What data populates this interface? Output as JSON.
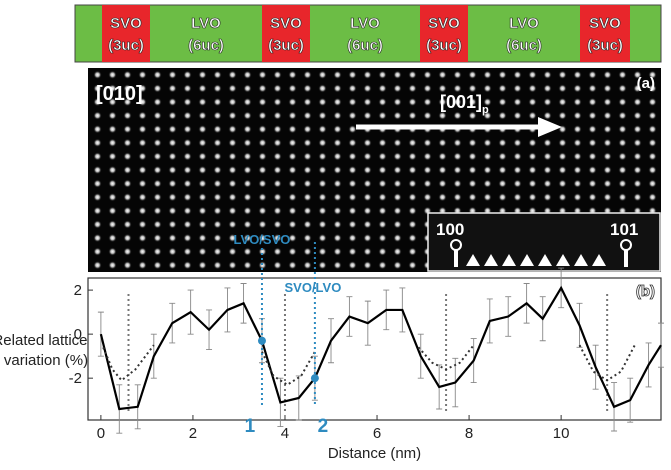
{
  "layers": [
    {
      "material": "SVO",
      "thickness": "(3uc)"
    },
    {
      "material": "LVO",
      "thickness": "(6uc)"
    },
    {
      "material": "SVO",
      "thickness": "(3uc)"
    },
    {
      "material": "LVO",
      "thickness": "(6uc)"
    },
    {
      "material": "SVO",
      "thickness": "(3uc)"
    },
    {
      "material": "LVO",
      "thickness": "(6uc)"
    },
    {
      "material": "SVO",
      "thickness": "(3uc)"
    }
  ],
  "image": {
    "zone_axis": "[010]",
    "direction": "[001]",
    "direction_sub": "p",
    "panel": "(a)",
    "inset_left": "100",
    "inset_right": "101"
  },
  "chart_data": {
    "type": "line",
    "panel": "(b)",
    "xlabel": "Distance (nm)",
    "ylabel": [
      "Related lattice",
      "variation (%)"
    ],
    "xlim": [
      -0.28,
      12.17
    ],
    "ylim": [
      -3.9,
      2.55
    ],
    "xticks": [
      0,
      2,
      4,
      6,
      8,
      10
    ],
    "yticks": [
      -2,
      0,
      2
    ],
    "series": [
      {
        "color": "#000000",
        "x": [
          0,
          0.4,
          0.8,
          1.15,
          1.55,
          1.95,
          2.35,
          2.75,
          3.1,
          3.5,
          3.9,
          4.3,
          4.65,
          5.0,
          5.4,
          5.8,
          6.2,
          6.55,
          6.95,
          7.35,
          7.7,
          8.1,
          8.45,
          8.85,
          9.25,
          9.6,
          10.0,
          10.4,
          10.75,
          11.15,
          11.5,
          11.9,
          12.17
        ],
        "values": [
          0,
          -3.4,
          -3.3,
          -1.0,
          0.5,
          1.0,
          0.2,
          1.1,
          1.4,
          -0.3,
          -3.1,
          -2.9,
          -2.0,
          -0.3,
          0.8,
          0.5,
          1.1,
          1.1,
          -1.0,
          -2.4,
          -2.2,
          -1.2,
          0.6,
          0.8,
          1.4,
          0.7,
          2.1,
          0.4,
          -1.5,
          -3.3,
          -3.0,
          -1.4,
          -0.5
        ],
        "errors": [
          1.0,
          1.1,
          1.0,
          1.0,
          0.9,
          1.0,
          0.9,
          1.0,
          0.9,
          1.0,
          1.1,
          1.0,
          1.0,
          1.0,
          0.9,
          1.0,
          0.9,
          1.0,
          1.0,
          1.0,
          1.1,
          1.0,
          1.0,
          0.9,
          0.9,
          1.0,
          0.9,
          1.0,
          1.0,
          1.1,
          1.0,
          1.0,
          1.0
        ]
      },
      {
        "color": "#333333",
        "style": "dotted",
        "x": [
          0.05,
          0.25,
          0.45,
          0.75,
          1.15
        ],
        "values": [
          -0.6,
          -1.6,
          -2.1,
          -1.6,
          -0.5
        ]
      },
      {
        "color": "#333333",
        "style": "dotted",
        "x": [
          3.5,
          3.75,
          4.05,
          4.35,
          4.65
        ],
        "values": [
          -0.8,
          -1.9,
          -2.3,
          -1.9,
          -0.8
        ]
      },
      {
        "color": "#333333",
        "style": "dotted",
        "x": [
          6.9,
          7.2,
          7.5,
          7.8,
          8.1
        ],
        "values": [
          -0.6,
          -1.3,
          -1.6,
          -1.3,
          -0.5
        ]
      },
      {
        "color": "#333333",
        "style": "dotted",
        "x": [
          10.4,
          10.7,
          11.0,
          11.3,
          11.6
        ],
        "values": [
          -0.5,
          -1.7,
          -2.1,
          -1.7,
          -0.5
        ]
      }
    ],
    "vlines": [
      0.6,
      4.0,
      7.5,
      11.0
    ],
    "interfaces": [
      {
        "label": "LVO/SVO",
        "point_label": "1",
        "x": 3.5,
        "value": -0.3
      },
      {
        "label": "SVO/LVO",
        "point_label": "2",
        "x": 4.65,
        "value": -2.0
      }
    ]
  }
}
